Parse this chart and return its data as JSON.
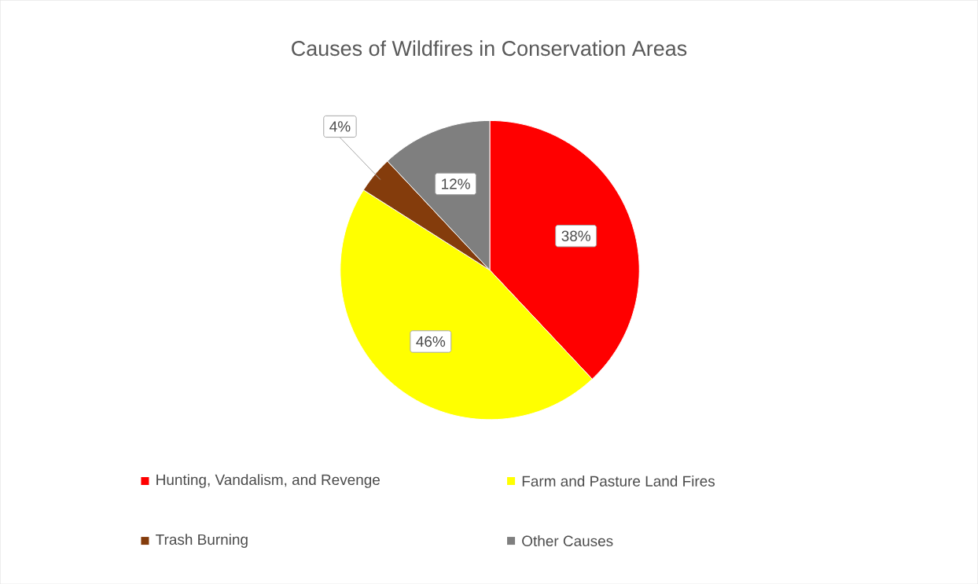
{
  "chart_data": {
    "type": "pie",
    "title": "Causes of Wildfires in Conservation Areas",
    "categories": [
      "Hunting, Vandalism, and Revenge",
      "Farm and Pasture Land Fires",
      "Trash Burning",
      "Other Causes"
    ],
    "values": [
      38,
      46,
      4,
      12
    ],
    "colors": [
      "#ff0000",
      "#ffff00",
      "#843c0c",
      "#7f7f7f"
    ],
    "value_labels": [
      "38%",
      "46%",
      "4%",
      "12%"
    ],
    "legend": "bottom"
  }
}
